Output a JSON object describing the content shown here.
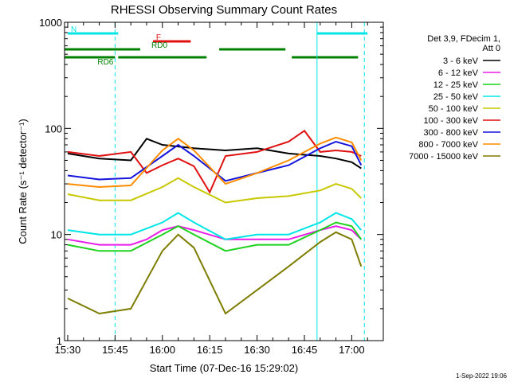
{
  "footer_date": "1-Sep-2022 19:06",
  "chart_data": {
    "type": "line",
    "title": "RHESSI Observing Summary Count Rates",
    "xlabel": "Start Time (07-Dec-16 15:29:02)",
    "ylabel": "Count Rate (s⁻¹ detector⁻¹)",
    "yscale": "log",
    "xlim": [
      "15:29",
      "17:10"
    ],
    "ylim": [
      1,
      1000
    ],
    "grid": false,
    "legend_position": "right",
    "legend_header": [
      "Det 3,9, FDecim 1,",
      "Att 0"
    ],
    "x_ticks": [
      "15:30",
      "15:45",
      "16:00",
      "16:15",
      "16:30",
      "16:45",
      "17:00"
    ],
    "y_ticks": [
      1,
      10,
      100,
      1000
    ],
    "y_tick_labels": [
      "1",
      "10",
      "100",
      "1000"
    ],
    "series": [
      {
        "name": "3 - 6 keV",
        "color": "#000000",
        "x": [
          "15:30",
          "15:40",
          "15:50",
          "15:55",
          "16:00",
          "16:10",
          "16:20",
          "16:30",
          "16:40",
          "16:50",
          "16:55",
          "17:00",
          "17:03"
        ],
        "values": [
          58,
          52,
          50,
          80,
          70,
          65,
          62,
          65,
          58,
          55,
          52,
          48,
          42
        ]
      },
      {
        "name": "6 - 12 keV",
        "color": "#e81ee8",
        "x": [
          "15:30",
          "15:40",
          "15:50",
          "15:55",
          "16:00",
          "16:05",
          "16:10",
          "16:20",
          "16:30",
          "16:40",
          "16:50",
          "16:55",
          "17:00",
          "17:03"
        ],
        "values": [
          9,
          8,
          8,
          9,
          11,
          12,
          11,
          9,
          9,
          9,
          11,
          12,
          11,
          9
        ]
      },
      {
        "name": "12 - 25 keV",
        "color": "#1ed21e",
        "x": [
          "15:30",
          "15:40",
          "15:50",
          "16:00",
          "16:05",
          "16:10",
          "16:20",
          "16:30",
          "16:40",
          "16:50",
          "16:55",
          "17:00",
          "17:03"
        ],
        "values": [
          8,
          7,
          7,
          10,
          12,
          10,
          7,
          8,
          8,
          11,
          13,
          12,
          9
        ]
      },
      {
        "name": "25 - 50 keV",
        "color": "#00e5e5",
        "x": [
          "15:30",
          "15:40",
          "15:50",
          "16:00",
          "16:05",
          "16:10",
          "16:20",
          "16:30",
          "16:40",
          "16:50",
          "16:55",
          "17:00",
          "17:03"
        ],
        "values": [
          11,
          10,
          10,
          13,
          16,
          13,
          9,
          10,
          10,
          13,
          16,
          14,
          11
        ]
      },
      {
        "name": "50 - 100 keV",
        "color": "#c8c800",
        "x": [
          "15:30",
          "15:40",
          "15:50",
          "16:00",
          "16:05",
          "16:10",
          "16:20",
          "16:30",
          "16:40",
          "16:50",
          "16:55",
          "17:00",
          "17:03"
        ],
        "values": [
          24,
          21,
          21,
          28,
          34,
          28,
          20,
          22,
          23,
          26,
          30,
          27,
          22
        ]
      },
      {
        "name": "100 - 300 keV",
        "color": "#e01010",
        "x": [
          "15:30",
          "15:40",
          "15:50",
          "15:55",
          "16:00",
          "16:05",
          "16:10",
          "16:15",
          "16:20",
          "16:30",
          "16:40",
          "16:45",
          "16:50",
          "16:55",
          "17:00",
          "17:03"
        ],
        "values": [
          60,
          55,
          60,
          38,
          45,
          52,
          44,
          25,
          55,
          60,
          75,
          95,
          60,
          62,
          60,
          55
        ]
      },
      {
        "name": "300 - 800 keV",
        "color": "#1414dc",
        "x": [
          "15:30",
          "15:40",
          "15:50",
          "16:00",
          "16:05",
          "16:10",
          "16:20",
          "16:30",
          "16:40",
          "16:50",
          "16:55",
          "17:00",
          "17:03"
        ],
        "values": [
          36,
          33,
          34,
          55,
          70,
          55,
          32,
          38,
          45,
          65,
          75,
          68,
          45
        ]
      },
      {
        "name": "800 - 7000 keV",
        "color": "#ff8c00",
        "x": [
          "15:30",
          "15:40",
          "15:50",
          "16:00",
          "16:05",
          "16:10",
          "16:20",
          "16:30",
          "16:40",
          "16:50",
          "16:55",
          "17:00",
          "17:03"
        ],
        "values": [
          30,
          28,
          29,
          62,
          80,
          62,
          30,
          38,
          50,
          72,
          82,
          74,
          50
        ]
      },
      {
        "name": "7000 - 15000 keV",
        "color": "#7d7d00",
        "x": [
          "15:30",
          "15:40",
          "15:50",
          "16:00",
          "16:05",
          "16:10",
          "16:20",
          "16:30",
          "16:40",
          "16:50",
          "16:55",
          "17:00",
          "17:03"
        ],
        "values": [
          2.5,
          1.8,
          2.0,
          7.0,
          10.0,
          7.5,
          1.8,
          3.0,
          5.0,
          8.5,
          10.5,
          9.0,
          5.0
        ]
      }
    ],
    "flag_bars": [
      {
        "label": "N",
        "color": "#00e5e5",
        "segments": [
          [
            "15:30",
            "15:46"
          ],
          [
            "16:49",
            "17:05"
          ]
        ]
      },
      {
        "label": "F",
        "color": "#e01010",
        "segments": [
          [
            "15:57",
            "16:09"
          ]
        ]
      },
      {
        "label": "RD0",
        "color": "#008000",
        "segments": [
          [
            "15:29",
            "15:53"
          ],
          [
            "16:18",
            "16:39"
          ]
        ]
      },
      {
        "label": "RD6",
        "color": "#008000",
        "segments": [
          [
            "15:29",
            "15:45"
          ],
          [
            "15:46",
            "16:14"
          ],
          [
            "16:41",
            "17:02"
          ]
        ]
      }
    ],
    "vertical_markers": [
      {
        "x": "15:45",
        "style": "dashed",
        "color": "#00e5e5"
      },
      {
        "x": "16:49",
        "style": "solid",
        "color": "#00e5e5"
      },
      {
        "x": "17:04",
        "style": "dashed",
        "color": "#00e5e5"
      }
    ]
  }
}
